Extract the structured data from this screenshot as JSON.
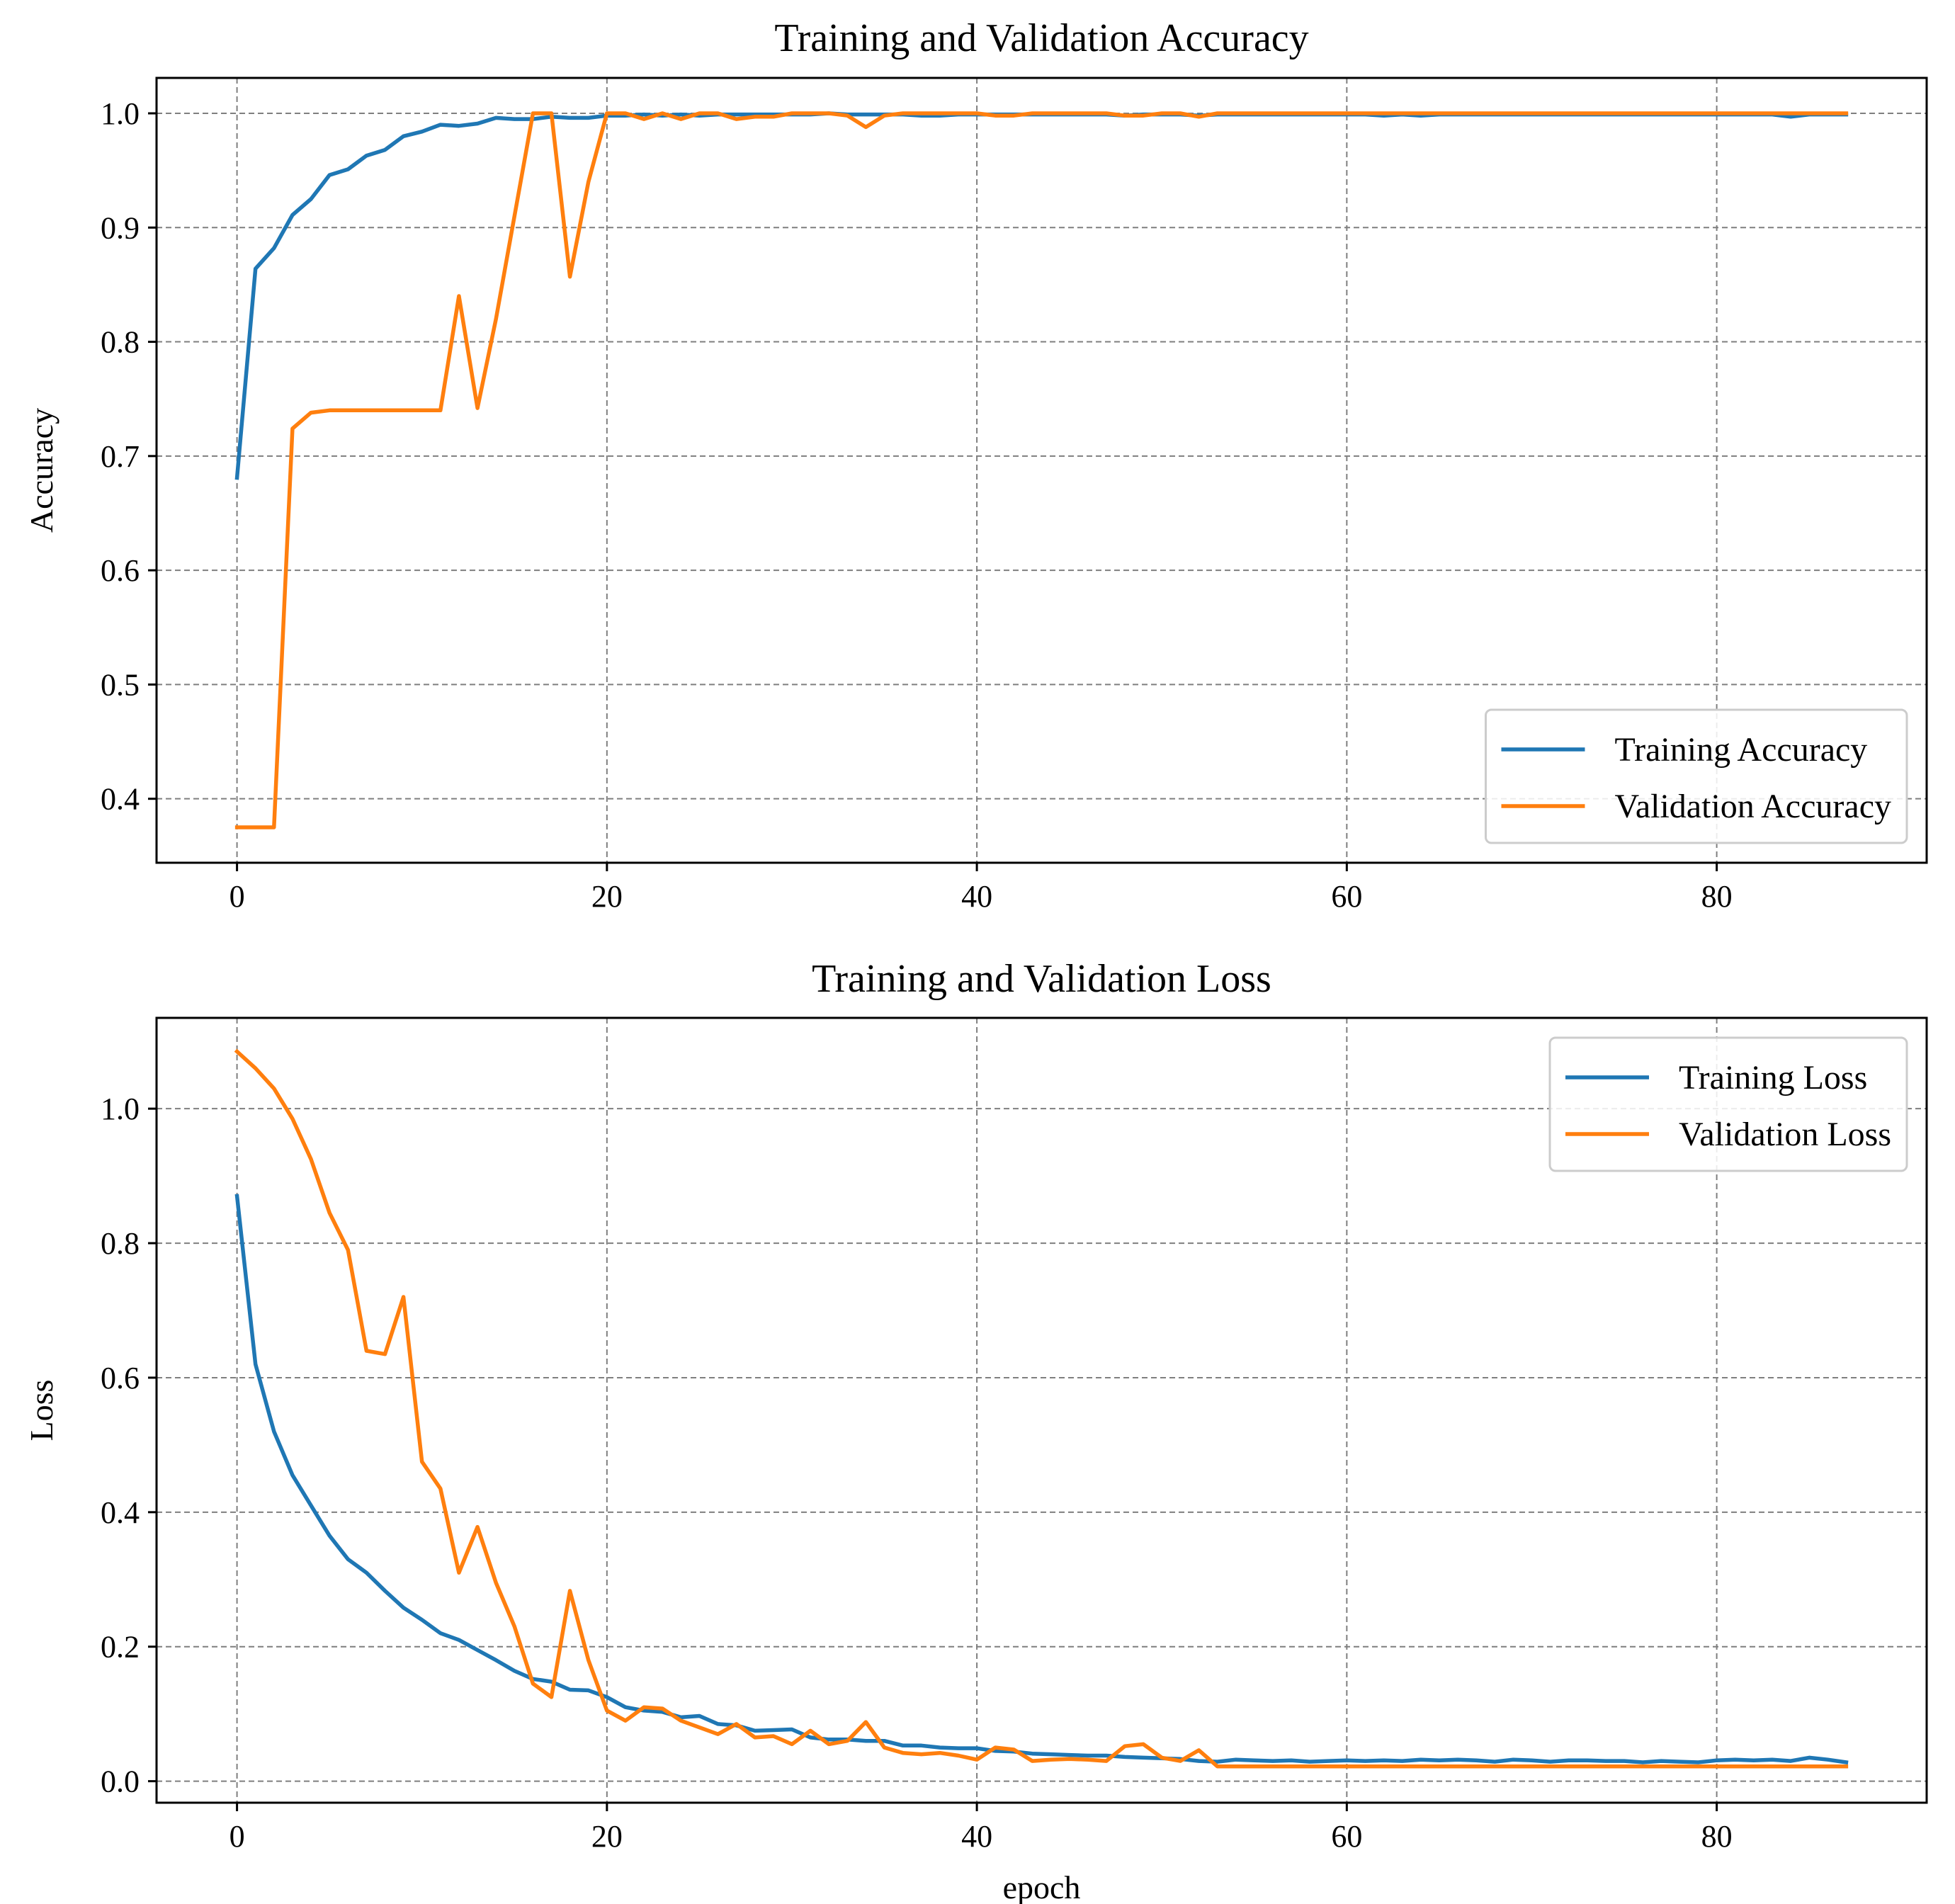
{
  "chart_data": [
    {
      "type": "line",
      "title": "Training and Validation Accuracy",
      "xlabel": "",
      "ylabel": "Accuracy",
      "xlim": [
        -4.35,
        91.35
      ],
      "ylim": [
        0.344,
        1.031
      ],
      "xticks": [
        0,
        20,
        40,
        60,
        80
      ],
      "yticks": [
        0.4,
        0.5,
        0.6,
        0.7,
        0.8,
        0.9,
        1.0
      ],
      "xtick_labels": [
        "0",
        "20",
        "40",
        "60",
        "80"
      ],
      "ytick_labels": [
        "0.4",
        "0.5",
        "0.6",
        "0.7",
        "0.8",
        "0.9",
        "1.0"
      ],
      "grid": true,
      "legend_position": "lower-right",
      "series": [
        {
          "name": "Training Accuracy",
          "color": "#1f77b4",
          "values": [
            0.681,
            0.864,
            0.882,
            0.911,
            0.925,
            0.946,
            0.951,
            0.963,
            0.968,
            0.98,
            0.984,
            0.99,
            0.989,
            0.991,
            0.996,
            0.995,
            0.995,
            0.997,
            0.996,
            0.996,
            0.998,
            0.998,
            0.999,
            0.998,
            0.999,
            0.998,
            0.999,
            0.999,
            0.999,
            0.999,
            0.999,
            0.999,
            1.0,
            0.999,
            0.999,
            0.999,
            0.999,
            0.998,
            0.998,
            0.999,
            0.999,
            0.999,
            0.999,
            0.999,
            0.999,
            0.999,
            0.999,
            0.999,
            0.998,
            0.999,
            0.999,
            0.999,
            0.998,
            0.999,
            0.999,
            0.999,
            0.999,
            0.999,
            0.999,
            0.999,
            0.999,
            0.999,
            0.998,
            0.999,
            0.998,
            0.999,
            0.999,
            0.999,
            0.999,
            0.999,
            0.999,
            0.999,
            0.999,
            0.999,
            0.999,
            0.999,
            0.999,
            0.999,
            0.999,
            0.999,
            0.999,
            0.999,
            0.999,
            0.999,
            0.997,
            0.999,
            0.999,
            0.999
          ]
        },
        {
          "name": "Validation Accuracy",
          "color": "#ff7f0e",
          "values": [
            0.375,
            0.375,
            0.375,
            0.724,
            0.738,
            0.74,
            0.74,
            0.74,
            0.74,
            0.74,
            0.74,
            0.74,
            0.84,
            0.742,
            0.82,
            0.91,
            1.0,
            1.0,
            0.857,
            0.94,
            1.0,
            1.0,
            0.995,
            1.0,
            0.995,
            1.0,
            1.0,
            0.995,
            0.997,
            0.997,
            1.0,
            1.0,
            1.0,
            0.998,
            0.988,
            0.998,
            1.0,
            1.0,
            1.0,
            1.0,
            1.0,
            0.998,
            0.998,
            1.0,
            1.0,
            1.0,
            1.0,
            1.0,
            0.998,
            0.998,
            1.0,
            1.0,
            0.997,
            1.0,
            1.0,
            1.0,
            1.0,
            1.0,
            1.0,
            1.0,
            1.0,
            1.0,
            1.0,
            1.0,
            1.0,
            1.0,
            1.0,
            1.0,
            1.0,
            1.0,
            1.0,
            1.0,
            1.0,
            1.0,
            1.0,
            1.0,
            1.0,
            1.0,
            1.0,
            1.0,
            1.0,
            1.0,
            1.0,
            1.0,
            1.0,
            1.0,
            1.0,
            1.0
          ]
        }
      ]
    },
    {
      "type": "line",
      "title": "Training and Validation Loss",
      "xlabel": "epoch",
      "ylabel": "Loss",
      "xlim": [
        -4.35,
        91.35
      ],
      "ylim": [
        -0.032,
        1.135
      ],
      "xticks": [
        0,
        20,
        40,
        60,
        80
      ],
      "yticks": [
        0.0,
        0.2,
        0.4,
        0.6,
        0.8,
        1.0
      ],
      "xtick_labels": [
        "0",
        "20",
        "40",
        "60",
        "80"
      ],
      "ytick_labels": [
        "0.0",
        "0.2",
        "0.4",
        "0.6",
        "0.8",
        "1.0"
      ],
      "grid": true,
      "legend_position": "upper-right",
      "series": [
        {
          "name": "Training Loss",
          "color": "#1f77b4",
          "values": [
            0.87,
            0.62,
            0.52,
            0.455,
            0.41,
            0.365,
            0.33,
            0.31,
            0.283,
            0.258,
            0.24,
            0.22,
            0.21,
            0.195,
            0.18,
            0.164,
            0.152,
            0.148,
            0.136,
            0.135,
            0.125,
            0.11,
            0.105,
            0.103,
            0.095,
            0.097,
            0.085,
            0.083,
            0.075,
            0.076,
            0.077,
            0.065,
            0.062,
            0.062,
            0.06,
            0.06,
            0.053,
            0.053,
            0.05,
            0.049,
            0.049,
            0.045,
            0.044,
            0.041,
            0.04,
            0.039,
            0.038,
            0.038,
            0.036,
            0.035,
            0.034,
            0.033,
            0.03,
            0.029,
            0.032,
            0.031,
            0.03,
            0.031,
            0.029,
            0.03,
            0.031,
            0.03,
            0.031,
            0.03,
            0.032,
            0.031,
            0.032,
            0.031,
            0.029,
            0.032,
            0.031,
            0.029,
            0.031,
            0.031,
            0.03,
            0.03,
            0.028,
            0.03,
            0.029,
            0.028,
            0.031,
            0.032,
            0.031,
            0.032,
            0.03,
            0.035,
            0.032,
            0.028
          ]
        },
        {
          "name": "Validation Loss",
          "color": "#ff7f0e",
          "values": [
            1.085,
            1.06,
            1.03,
            0.985,
            0.925,
            0.845,
            0.79,
            0.64,
            0.635,
            0.72,
            0.475,
            0.435,
            0.31,
            0.378,
            0.295,
            0.23,
            0.145,
            0.125,
            0.283,
            0.18,
            0.105,
            0.09,
            0.11,
            0.108,
            0.09,
            0.08,
            0.07,
            0.085,
            0.065,
            0.067,
            0.055,
            0.075,
            0.055,
            0.06,
            0.088,
            0.05,
            0.042,
            0.04,
            0.042,
            0.038,
            0.032,
            0.05,
            0.047,
            0.03,
            0.032,
            0.033,
            0.032,
            0.03,
            0.052,
            0.055,
            0.035,
            0.03,
            0.046,
            0.022,
            0.022,
            0.022,
            0.022,
            0.022,
            0.022,
            0.022,
            0.022,
            0.022,
            0.022,
            0.022,
            0.022,
            0.022,
            0.022,
            0.022,
            0.022,
            0.022,
            0.022,
            0.022,
            0.022,
            0.022,
            0.022,
            0.022,
            0.022,
            0.022,
            0.022,
            0.022,
            0.022,
            0.022,
            0.022,
            0.022,
            0.022,
            0.022,
            0.022,
            0.022
          ]
        }
      ]
    }
  ]
}
